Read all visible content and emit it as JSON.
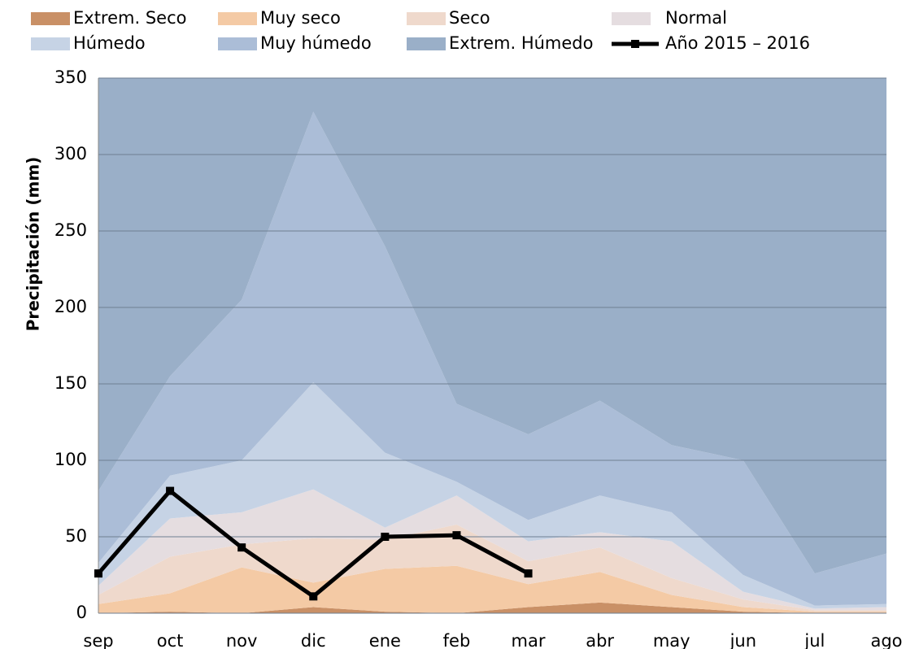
{
  "chart_data": {
    "type": "area",
    "stacked": true,
    "y_label": "Precipitación (mm)",
    "categories": [
      "sep",
      "oct",
      "nov",
      "dic",
      "ene",
      "feb",
      "mar",
      "abr",
      "may",
      "jun",
      "jul",
      "ago"
    ],
    "ylim": [
      0,
      350
    ],
    "yticks": [
      0,
      50,
      100,
      150,
      200,
      250,
      300,
      350
    ],
    "grid": true,
    "series": [
      {
        "name": "Extrem. Seco",
        "color": "#c99066",
        "values": [
          0,
          1,
          0,
          4,
          1,
          0,
          4,
          7,
          4,
          1,
          0,
          0
        ]
      },
      {
        "name": "Muy seco",
        "color": "#f4caa5",
        "values": [
          6,
          12,
          30,
          16,
          28,
          31,
          15,
          20,
          8,
          3,
          1,
          1
        ]
      },
      {
        "name": "Seco",
        "color": "#efd9cc",
        "values": [
          6,
          24,
          15,
          29,
          19,
          27,
          15,
          16,
          11,
          5,
          1,
          1
        ]
      },
      {
        "name": "Normal",
        "color": "#e5dde0",
        "values": [
          6,
          25,
          21,
          32,
          8,
          19,
          13,
          10,
          24,
          5,
          1,
          2
        ]
      },
      {
        "name": "Húmedo",
        "color": "#c6d3e5",
        "values": [
          15,
          28,
          34,
          70,
          49,
          9,
          14,
          24,
          19,
          11,
          2,
          2
        ]
      },
      {
        "name": "Muy húmedo",
        "color": "#abbdd7",
        "values": [
          47,
          65,
          105,
          177,
          135,
          51,
          56,
          62,
          44,
          75,
          21,
          33
        ]
      },
      {
        "name": "Extrem. Húmedo",
        "color": "#9aafc8",
        "values": [
          270,
          195,
          145,
          22,
          110,
          213,
          233,
          211,
          240,
          250,
          324,
          311
        ]
      },
      {
        "name": "Año 2015 – 2016",
        "type": "line",
        "color": "#000000",
        "values": [
          26,
          80,
          43,
          11,
          50,
          51,
          26,
          null,
          null,
          null,
          null,
          null
        ]
      }
    ]
  }
}
